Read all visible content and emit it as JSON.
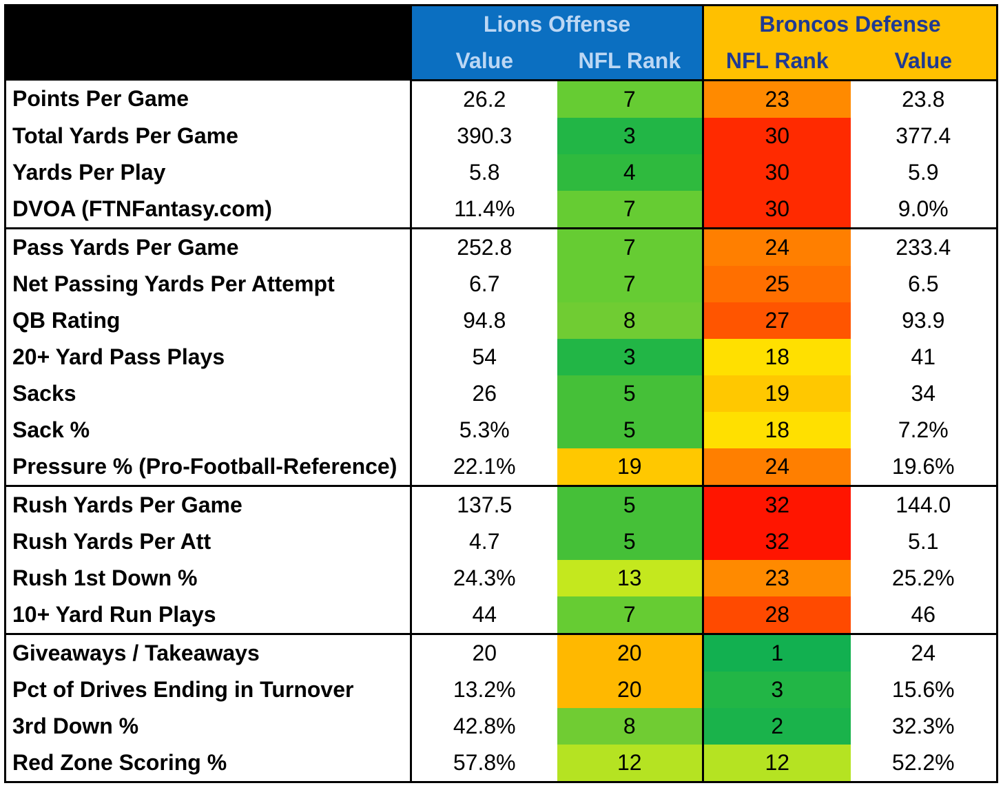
{
  "header": {
    "offense_title": "Lions Offense",
    "defense_title": "Broncos Defense",
    "offense_cols": [
      "Value",
      "NFL Rank"
    ],
    "defense_cols": [
      "NFL Rank",
      "Value"
    ]
  },
  "groups": [
    {
      "rows": [
        {
          "label": "Points Per Game",
          "off_value": "26.2",
          "off_rank": "7",
          "off_color": "#66cc33",
          "def_rank": "23",
          "def_color": "#ff8a00",
          "def_value": "23.8"
        },
        {
          "label": "Total Yards Per Game",
          "off_value": "390.3",
          "off_rank": "3",
          "off_color": "#22b646",
          "def_rank": "30",
          "def_color": "#ff2a00",
          "def_value": "377.4"
        },
        {
          "label": "Yards Per Play",
          "off_value": "5.8",
          "off_rank": "4",
          "off_color": "#2fba3e",
          "def_rank": "30",
          "def_color": "#ff2a00",
          "def_value": "5.9"
        },
        {
          "label": "DVOA (FTNFantasy.com)",
          "off_value": "11.4%",
          "off_rank": "7",
          "off_color": "#66cc33",
          "def_rank": "30",
          "def_color": "#ff2a00",
          "def_value": "9.0%"
        }
      ]
    },
    {
      "rows": [
        {
          "label": "Pass Yards Per Game",
          "off_value": "252.8",
          "off_rank": "7",
          "off_color": "#66cc33",
          "def_rank": "24",
          "def_color": "#ff7f00",
          "def_value": "233.4"
        },
        {
          "label": "Net Passing Yards Per Attempt",
          "off_value": "6.7",
          "off_rank": "7",
          "off_color": "#66cc33",
          "def_rank": "25",
          "def_color": "#ff6f00",
          "def_value": "6.5"
        },
        {
          "label": "QB Rating",
          "off_value": "94.8",
          "off_rank": "8",
          "off_color": "#70cc33",
          "def_rank": "27",
          "def_color": "#ff5500",
          "def_value": "93.9"
        },
        {
          "label": "20+ Yard Pass Plays",
          "off_value": "54",
          "off_rank": "3",
          "off_color": "#22b646",
          "def_rank": "18",
          "def_color": "#ffe000",
          "def_value": "41"
        },
        {
          "label": "Sacks",
          "off_value": "26",
          "off_rank": "5",
          "off_color": "#45c038",
          "def_rank": "19",
          "def_color": "#ffc800",
          "def_value": "34"
        },
        {
          "label": "Sack %",
          "off_value": "5.3%",
          "off_rank": "5",
          "off_color": "#45c038",
          "def_rank": "18",
          "def_color": "#ffe000",
          "def_value": "7.2%"
        },
        {
          "label": "Pressure % (Pro-Football-Reference)",
          "off_value": "22.1%",
          "off_rank": "19",
          "off_color": "#ffc800",
          "def_rank": "24",
          "def_color": "#ff7f00",
          "def_value": "19.6%"
        }
      ]
    },
    {
      "rows": [
        {
          "label": "Rush Yards Per Game",
          "off_value": "137.5",
          "off_rank": "5",
          "off_color": "#45c038",
          "def_rank": "32",
          "def_color": "#ff1500",
          "def_value": "144.0"
        },
        {
          "label": "Rush Yards Per Att",
          "off_value": "4.7",
          "off_rank": "5",
          "off_color": "#45c038",
          "def_rank": "32",
          "def_color": "#ff1500",
          "def_value": "5.1"
        },
        {
          "label": "Rush 1st Down %",
          "off_value": "24.3%",
          "off_rank": "13",
          "off_color": "#c4e81e",
          "def_rank": "23",
          "def_color": "#ff8a00",
          "def_value": "25.2%"
        },
        {
          "label": "10+ Yard Run Plays",
          "off_value": "44",
          "off_rank": "7",
          "off_color": "#66cc33",
          "def_rank": "28",
          "def_color": "#ff4a00",
          "def_value": "46"
        }
      ]
    },
    {
      "rows": [
        {
          "label": "Giveaways / Takeaways",
          "off_value": "20",
          "off_rank": "20",
          "off_color": "#ffb800",
          "def_rank": "1",
          "def_color": "#12b050",
          "def_value": "24"
        },
        {
          "label": "Pct of Drives Ending in Turnover",
          "off_value": "13.2%",
          "off_rank": "20",
          "off_color": "#ffb800",
          "def_rank": "3",
          "def_color": "#22b646",
          "def_value": "15.6%"
        },
        {
          "label": "3rd Down %",
          "off_value": "42.8%",
          "off_rank": "8",
          "off_color": "#70cc33",
          "def_rank": "2",
          "def_color": "#1ab34b",
          "def_value": "32.3%"
        },
        {
          "label": "Red Zone Scoring %",
          "off_value": "57.8%",
          "off_rank": "12",
          "off_color": "#b5e322",
          "def_rank": "12",
          "def_color": "#b5e322",
          "def_value": "52.2%"
        }
      ]
    }
  ]
}
